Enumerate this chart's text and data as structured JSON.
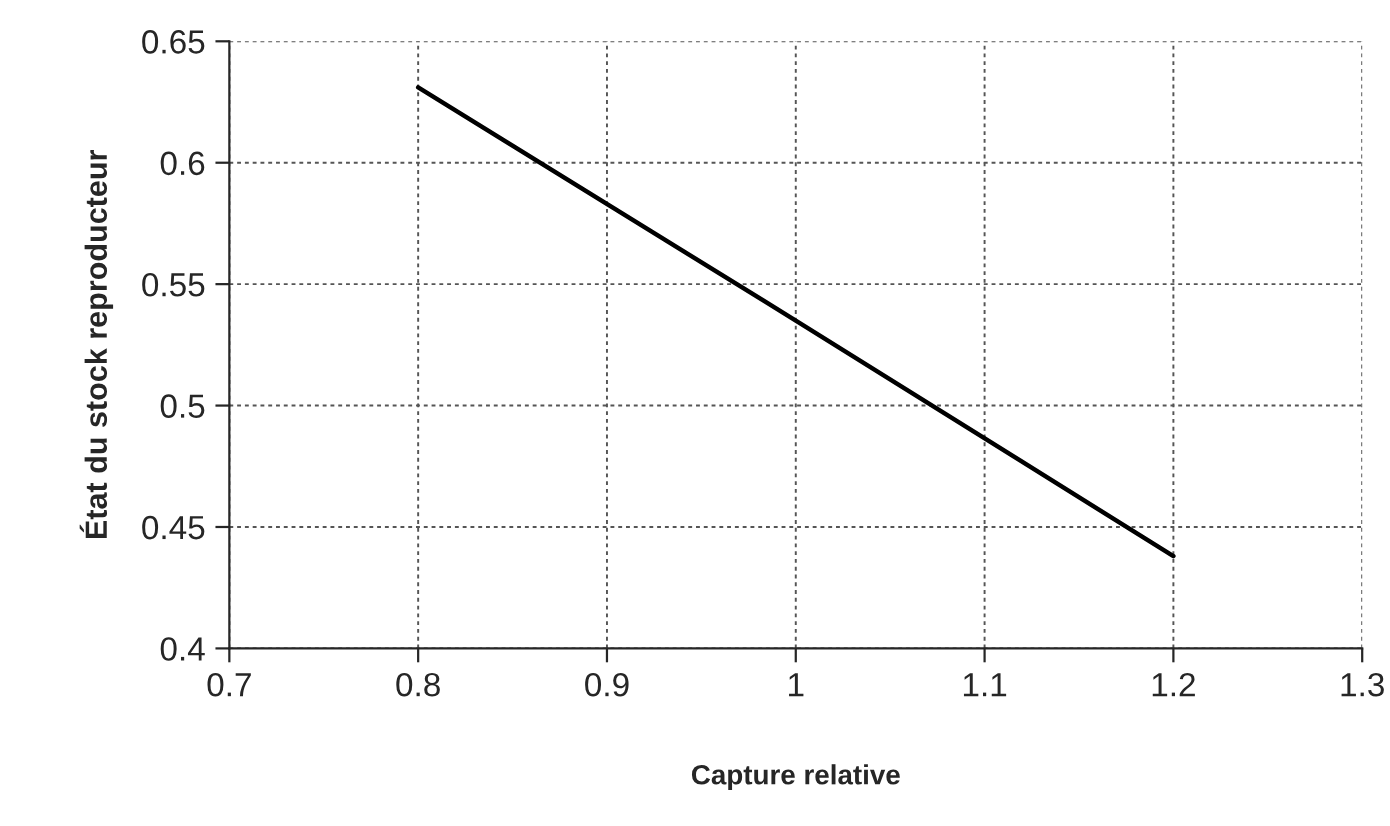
{
  "chart_data": {
    "type": "line",
    "xlabel": "Capture relative",
    "ylabel": "État du stock reproducteur",
    "x": [
      0.8,
      1.0,
      1.2
    ],
    "series": [
      {
        "color": "#000000",
        "values": [
          0.631,
          0.535,
          0.438
        ]
      }
    ],
    "xlim": [
      0.7,
      1.3
    ],
    "xticks": [
      0.7,
      0.8,
      0.9,
      1,
      1.1,
      1.2,
      1.3
    ],
    "ylim": [
      0.4,
      0.65
    ],
    "yticks": [
      0.4,
      0.45,
      0.5,
      0.55,
      0.6,
      0.65
    ],
    "grid": true,
    "line_style": "solid",
    "marker": "none"
  }
}
